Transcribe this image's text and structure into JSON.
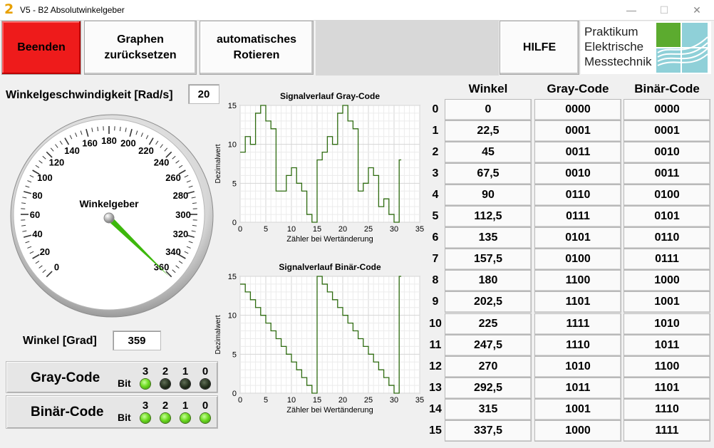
{
  "window": {
    "title": "V5 - B2 Absolutwinkelgeber",
    "app_icon": "2",
    "min": "—",
    "max": "☐",
    "close": "✕"
  },
  "toolbar": {
    "quit": "Beenden",
    "reset_graphs": "Graphen\nzurücksetzen",
    "auto_rotate": "automatisches\nRotieren",
    "help": "HILFE"
  },
  "logo": {
    "line1": "Praktikum",
    "line2": "Elektrische",
    "line3": "Messtechnik"
  },
  "speed": {
    "label": "Winkelgeschwindigkeit [Rad/s]",
    "value": "20"
  },
  "gauge": {
    "label": "Winkelgeber",
    "ticks": [
      "0",
      "20",
      "40",
      "60",
      "80",
      "100",
      "120",
      "140",
      "160",
      "180",
      "200",
      "220",
      "240",
      "260",
      "280",
      "300",
      "320",
      "340",
      "360"
    ],
    "value_deg": 359,
    "needle_color": "#3db80c"
  },
  "angle": {
    "label": "Winkel [Grad]",
    "value": "359"
  },
  "gray_panel": {
    "title": "Gray-Code",
    "bit_label": "Bit",
    "bits": [
      "3",
      "2",
      "1",
      "0"
    ],
    "states": [
      true,
      false,
      false,
      false
    ]
  },
  "binary_panel": {
    "title": "Binär-Code",
    "bit_label": "Bit",
    "bits": [
      "3",
      "2",
      "1",
      "0"
    ],
    "states": [
      true,
      true,
      true,
      true
    ]
  },
  "chart_data": [
    {
      "type": "line",
      "title": "Signalverlauf Gray-Code",
      "xlabel": "Zähler bei Wertänderung",
      "ylabel": "Dezimalwert",
      "xlim": [
        0,
        35
      ],
      "ylim": [
        0,
        15
      ],
      "xticks": [
        "0",
        "5",
        "10",
        "15",
        "20",
        "25",
        "30",
        "35"
      ],
      "yticks": [
        "0",
        "5",
        "10",
        "15"
      ],
      "step": true,
      "color": "#2e6b10",
      "x": [
        0,
        1,
        2,
        3,
        4,
        5,
        6,
        7,
        8,
        9,
        10,
        11,
        12,
        13,
        14,
        15,
        16,
        17,
        18,
        19,
        20,
        21,
        22,
        23,
        24,
        25,
        26,
        27,
        28,
        29,
        30,
        31,
        31.4
      ],
      "y": [
        9,
        11,
        10,
        14,
        15,
        13,
        12,
        4,
        4,
        6,
        7,
        5,
        4,
        1,
        0,
        8,
        9,
        11,
        10,
        14,
        15,
        13,
        12,
        4,
        5,
        7,
        6,
        2,
        3,
        1,
        0,
        8,
        8
      ]
    },
    {
      "type": "line",
      "title": "Signalverlauf Binär-Code",
      "xlabel": "Zähler bei Wertänderung",
      "ylabel": "Dezimalwert",
      "xlim": [
        0,
        35
      ],
      "ylim": [
        0,
        15
      ],
      "xticks": [
        "0",
        "5",
        "10",
        "15",
        "20",
        "25",
        "30",
        "35"
      ],
      "yticks": [
        "0",
        "5",
        "10",
        "15"
      ],
      "step": true,
      "color": "#2e6b10",
      "x": [
        0,
        1,
        2,
        3,
        4,
        5,
        6,
        7,
        8,
        9,
        10,
        11,
        12,
        13,
        14,
        15,
        16,
        17,
        18,
        19,
        20,
        21,
        22,
        23,
        24,
        25,
        26,
        27,
        28,
        29,
        30,
        31,
        31.4
      ],
      "y": [
        14,
        13,
        12,
        11,
        10,
        9,
        8,
        7,
        6,
        5,
        4,
        3,
        2,
        1,
        0,
        15,
        14,
        13,
        12,
        11,
        10,
        9,
        8,
        7,
        6,
        5,
        4,
        3,
        2,
        1,
        0,
        15,
        15
      ]
    }
  ],
  "table": {
    "headers": {
      "angle": "Winkel",
      "gray": "Gray-Code",
      "binary": "Binär-Code"
    },
    "rows": [
      {
        "idx": "0",
        "angle": "0",
        "gray": "0000",
        "binary": "0000"
      },
      {
        "idx": "1",
        "angle": "22,5",
        "gray": "0001",
        "binary": "0001"
      },
      {
        "idx": "2",
        "angle": "45",
        "gray": "0011",
        "binary": "0010"
      },
      {
        "idx": "3",
        "angle": "67,5",
        "gray": "0010",
        "binary": "0011"
      },
      {
        "idx": "4",
        "angle": "90",
        "gray": "0110",
        "binary": "0100"
      },
      {
        "idx": "5",
        "angle": "112,5",
        "gray": "0111",
        "binary": "0101"
      },
      {
        "idx": "6",
        "angle": "135",
        "gray": "0101",
        "binary": "0110"
      },
      {
        "idx": "7",
        "angle": "157,5",
        "gray": "0100",
        "binary": "0111"
      },
      {
        "idx": "8",
        "angle": "180",
        "gray": "1100",
        "binary": "1000"
      },
      {
        "idx": "9",
        "angle": "202,5",
        "gray": "1101",
        "binary": "1001"
      },
      {
        "idx": "10",
        "angle": "225",
        "gray": "1111",
        "binary": "1010"
      },
      {
        "idx": "11",
        "angle": "247,5",
        "gray": "1110",
        "binary": "1011"
      },
      {
        "idx": "12",
        "angle": "270",
        "gray": "1010",
        "binary": "1100"
      },
      {
        "idx": "13",
        "angle": "292,5",
        "gray": "1011",
        "binary": "1101"
      },
      {
        "idx": "14",
        "angle": "315",
        "gray": "1001",
        "binary": "1110"
      },
      {
        "idx": "15",
        "angle": "337,5",
        "gray": "1000",
        "binary": "1111"
      }
    ]
  }
}
